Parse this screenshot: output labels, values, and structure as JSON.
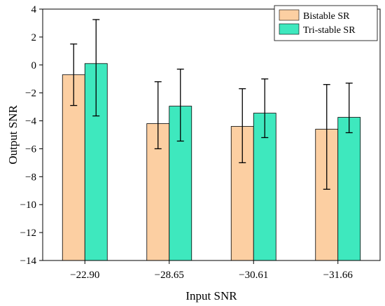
{
  "chart_data": {
    "type": "bar",
    "title": "",
    "xlabel": "Input SNR",
    "ylabel": "Output SNR",
    "ylim": [
      -14,
      4
    ],
    "yticks": [
      4,
      2,
      0,
      -2,
      -4,
      -6,
      -8,
      -10,
      -12,
      -14
    ],
    "ytick_labels": [
      "4",
      "2",
      "0",
      "−2",
      "−4",
      "−6",
      "−8",
      "−10",
      "−12",
      "−14"
    ],
    "categories": [
      "−22.90",
      "−28.65",
      "−30.61",
      "−31.66"
    ],
    "grid": false,
    "legend_position": "top-right",
    "series": [
      {
        "name": "Bistable SR",
        "color": "#FCCFA2",
        "values": [
          -0.7,
          -4.2,
          -4.4,
          -4.6
        ],
        "err_low": [
          -2.9,
          -6.0,
          -7.0,
          -8.9
        ],
        "err_high": [
          1.5,
          -1.2,
          -1.7,
          -1.4
        ]
      },
      {
        "name": "Tri-stable SR",
        "color": "#3EE8BE",
        "values": [
          0.1,
          -2.95,
          -3.45,
          -3.75
        ],
        "err_low": [
          -3.65,
          -5.45,
          -5.2,
          -4.85
        ],
        "err_high": [
          3.25,
          -0.3,
          -1.0,
          -1.3
        ]
      }
    ]
  }
}
